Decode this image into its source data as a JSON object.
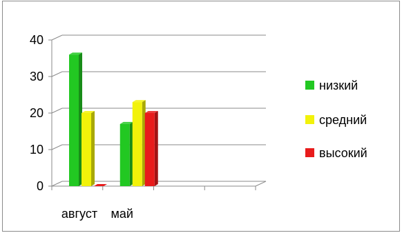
{
  "chart_data": {
    "type": "bar",
    "categories": [
      "август",
      "май"
    ],
    "series": [
      {
        "name": "низкий",
        "values": [
          36,
          17
        ],
        "color": "#22c822"
      },
      {
        "name": "средний",
        "values": [
          20,
          23
        ],
        "color": "#f2f20a"
      },
      {
        "name": "высокий",
        "values": [
          0,
          20
        ],
        "color": "#e81b1b"
      }
    ],
    "yticks": [
      "0",
      "10",
      "20",
      "30",
      "40"
    ],
    "ylim": [
      0,
      40
    ],
    "grid": true,
    "legend_position": "right",
    "title": "",
    "xlabel": "",
    "ylabel": ""
  }
}
